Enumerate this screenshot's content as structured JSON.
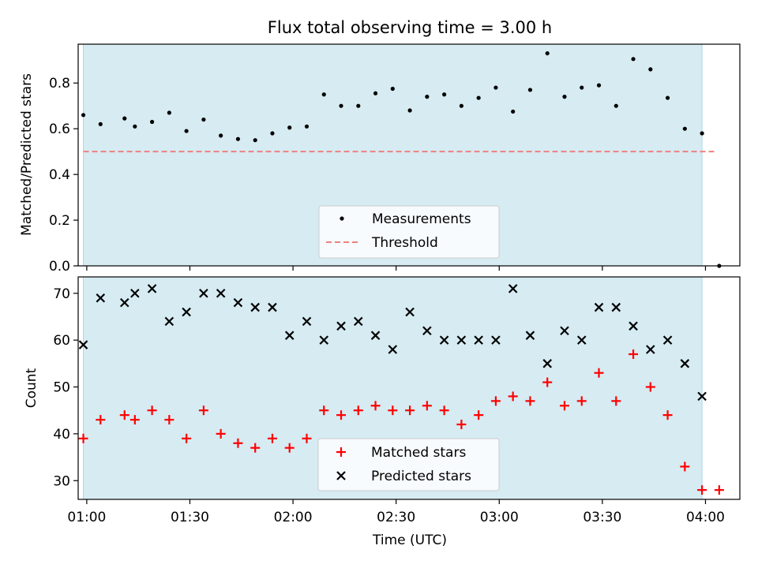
{
  "chart_data": [
    {
      "type": "scatter",
      "title": "Flux total observing time = 3.00 h",
      "xlabel": "",
      "ylabel": "Matched/Predicted stars",
      "x_unit": "time (UTC)",
      "xlim": [
        "00:57:30",
        "04:10:00"
      ],
      "ylim": [
        0,
        0.97
      ],
      "yticks": [
        0.0,
        0.2,
        0.4,
        0.6,
        0.8
      ],
      "ytick_labels": [
        "0.0",
        "0.2",
        "0.4",
        "0.6",
        "0.8"
      ],
      "observing_window": [
        "00:59:00",
        "03:59:00"
      ],
      "legend_position": "bottom-center",
      "series": [
        {
          "name": "Measurements",
          "marker": "dot",
          "color": "#000000",
          "x": [
            "00:59",
            "01:04",
            "01:11",
            "01:14",
            "01:19",
            "01:24",
            "01:29",
            "01:34",
            "01:39",
            "01:44",
            "01:49",
            "01:54",
            "01:59",
            "02:04",
            "02:09",
            "02:14",
            "02:19",
            "02:24",
            "02:29",
            "02:34",
            "02:39",
            "02:44",
            "02:49",
            "02:54",
            "02:59",
            "03:04",
            "03:09",
            "03:14",
            "03:19",
            "03:24",
            "03:29",
            "03:34",
            "03:39",
            "03:44",
            "03:49",
            "03:54",
            "03:59",
            "04:04"
          ],
          "y": [
            0.66,
            0.62,
            0.645,
            0.61,
            0.63,
            0.67,
            0.59,
            0.64,
            0.57,
            0.555,
            0.55,
            0.58,
            0.605,
            0.61,
            0.75,
            0.7,
            0.7,
            0.755,
            0.775,
            0.68,
            0.74,
            0.75,
            0.7,
            0.735,
            0.78,
            0.675,
            0.77,
            0.93,
            0.74,
            0.78,
            0.79,
            0.7,
            0.905,
            0.86,
            0.735,
            0.6,
            0.58,
            0.0
          ]
        },
        {
          "name": "Threshold",
          "style": "dashed",
          "color": "#f08080",
          "x": [
            "00:59",
            "04:03"
          ],
          "y": [
            0.5,
            0.5
          ]
        }
      ]
    },
    {
      "type": "scatter",
      "title": "",
      "xlabel": "Time (UTC)",
      "ylabel": "Count",
      "x_unit": "time (UTC)",
      "xlim": [
        "00:57:30",
        "04:10:00"
      ],
      "ylim": [
        26,
        73.5
      ],
      "yticks": [
        30,
        40,
        50,
        60,
        70
      ],
      "ytick_labels": [
        "30",
        "40",
        "50",
        "60",
        "70"
      ],
      "xticks": [
        "01:00",
        "01:30",
        "02:00",
        "02:30",
        "03:00",
        "03:30",
        "04:00"
      ],
      "xtick_labels": [
        "01:00",
        "01:30",
        "02:00",
        "02:30",
        "03:00",
        "03:30",
        "04:00"
      ],
      "observing_window": [
        "00:59:00",
        "03:59:00"
      ],
      "legend_position": "bottom-center",
      "series": [
        {
          "name": "Matched stars",
          "marker": "plus",
          "color": "#ff0000",
          "x": [
            "00:59",
            "01:04",
            "01:11",
            "01:14",
            "01:19",
            "01:24",
            "01:29",
            "01:34",
            "01:39",
            "01:44",
            "01:49",
            "01:54",
            "01:59",
            "02:04",
            "02:09",
            "02:14",
            "02:19",
            "02:24",
            "02:29",
            "02:34",
            "02:39",
            "02:44",
            "02:49",
            "02:54",
            "02:59",
            "03:04",
            "03:09",
            "03:14",
            "03:19",
            "03:24",
            "03:29",
            "03:34",
            "03:39",
            "03:44",
            "03:49",
            "03:54",
            "03:59",
            "04:04"
          ],
          "y": [
            39,
            43,
            44,
            43,
            45,
            43,
            39,
            45,
            40,
            38,
            37,
            39,
            37,
            39,
            45,
            44,
            45,
            46,
            45,
            45,
            46,
            45,
            42,
            44,
            47,
            48,
            47,
            51,
            46,
            47,
            53,
            47,
            57,
            50,
            44,
            33,
            28,
            28
          ]
        },
        {
          "name": "Predicted stars",
          "marker": "x",
          "color": "#000000",
          "x": [
            "00:59",
            "01:04",
            "01:11",
            "01:14",
            "01:19",
            "01:24",
            "01:29",
            "01:34",
            "01:39",
            "01:44",
            "01:49",
            "01:54",
            "01:59",
            "02:04",
            "02:09",
            "02:14",
            "02:19",
            "02:24",
            "02:29",
            "02:34",
            "02:39",
            "02:44",
            "02:49",
            "02:54",
            "02:59",
            "03:04",
            "03:09",
            "03:14",
            "03:19",
            "03:24",
            "03:29",
            "03:34",
            "03:39",
            "03:44",
            "03:49",
            "03:54",
            "03:59"
          ],
          "y": [
            59,
            69,
            68,
            70,
            71,
            64,
            66,
            70,
            70,
            68,
            67,
            67,
            61,
            64,
            60,
            63,
            64,
            61,
            58,
            66,
            62,
            60,
            60,
            60,
            60,
            71,
            61,
            55,
            62,
            60,
            67,
            67,
            63,
            58,
            60,
            55,
            48
          ]
        }
      ]
    }
  ]
}
